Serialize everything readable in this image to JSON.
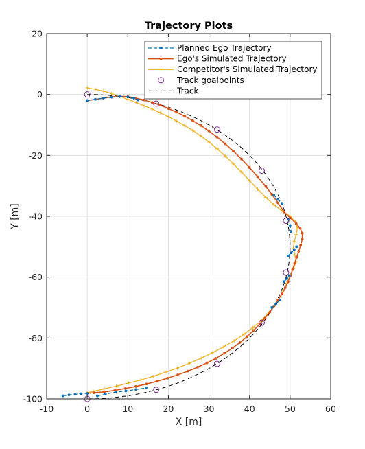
{
  "chart_data": {
    "type": "line",
    "title": "Trajectory Plots",
    "xlabel": "X [m]",
    "ylabel": "Y [m]",
    "xlim": [
      -10,
      60
    ],
    "ylim": [
      -100,
      20
    ],
    "xticks": [
      -10,
      0,
      10,
      20,
      30,
      40,
      50,
      60
    ],
    "yticks": [
      -100,
      -80,
      -60,
      -40,
      -20,
      0,
      20
    ],
    "grid": true,
    "legend_position": "top-right",
    "series": [
      {
        "name": "Planned Ego Trajectory",
        "color": "#0072BD",
        "style": "dashed-dots",
        "segments": [
          [
            [
              0,
              -2
            ],
            [
              2,
              -1.6
            ],
            [
              4,
              -1.2
            ],
            [
              6,
              -0.9
            ],
            [
              8,
              -0.7
            ],
            [
              10,
              -0.8
            ],
            [
              11.5,
              -1.2
            ],
            [
              12.5,
              -1.8
            ]
          ],
          [
            [
              46,
              -33
            ],
            [
              47,
              -34.5
            ],
            [
              48,
              -35.8
            ]
          ],
          [
            [
              49.5,
              -41
            ],
            [
              50,
              -43
            ],
            [
              50.2,
              -45
            ]
          ],
          [
            [
              49.5,
              -53
            ],
            [
              50.3,
              -52
            ],
            [
              51,
              -51
            ],
            [
              51.6,
              -50
            ]
          ],
          [
            [
              48.5,
              -61.5
            ],
            [
              49.2,
              -60.5
            ],
            [
              49.8,
              -59.5
            ]
          ],
          [
            [
              45.5,
              -70
            ],
            [
              46.5,
              -68.8
            ],
            [
              47.5,
              -67.5
            ]
          ],
          [
            [
              -6,
              -99
            ],
            [
              -4.5,
              -98.7
            ],
            [
              -3,
              -98.5
            ],
            [
              -1.5,
              -98.3
            ],
            [
              0,
              -98.2
            ]
          ],
          [
            [
              2.5,
              -99
            ],
            [
              4.5,
              -98.4
            ],
            [
              7,
              -97.8
            ],
            [
              9.5,
              -97.4
            ],
            [
              12,
              -96.9
            ],
            [
              14.5,
              -96.4
            ]
          ]
        ]
      },
      {
        "name": "Ego's Simulated Trajectory",
        "color": "#D95319",
        "style": "solid-dots",
        "points": [
          [
            0,
            -2
          ],
          [
            2,
            -1.6
          ],
          [
            4,
            -1.2
          ],
          [
            6,
            -0.8
          ],
          [
            8,
            -0.6
          ],
          [
            10,
            -0.7
          ],
          [
            12,
            -1.2
          ],
          [
            14,
            -1.8
          ],
          [
            16,
            -2.6
          ],
          [
            18,
            -3.5
          ],
          [
            20,
            -4.6
          ],
          [
            22,
            -5.8
          ],
          [
            24,
            -7.1
          ],
          [
            26,
            -8.6
          ],
          [
            28,
            -10.2
          ],
          [
            30,
            -12
          ],
          [
            32,
            -14
          ],
          [
            34,
            -16.2
          ],
          [
            36,
            -18.6
          ],
          [
            38,
            -21.2
          ],
          [
            40,
            -24
          ],
          [
            42,
            -27
          ],
          [
            44,
            -30.2
          ],
          [
            45.5,
            -32.8
          ],
          [
            47,
            -35.6
          ],
          [
            48.5,
            -38.6
          ],
          [
            50,
            -40.5
          ],
          [
            51.5,
            -42.4
          ],
          [
            52.5,
            -44
          ],
          [
            53,
            -45.6
          ],
          [
            53,
            -47.5
          ],
          [
            52.6,
            -49.5
          ],
          [
            52.1,
            -51.5
          ],
          [
            51.6,
            -53.5
          ],
          [
            51.1,
            -55.5
          ],
          [
            50.6,
            -57.5
          ],
          [
            50.1,
            -59.5
          ],
          [
            49.5,
            -61.5
          ],
          [
            48.8,
            -63.5
          ],
          [
            48,
            -65.5
          ],
          [
            47,
            -67.5
          ],
          [
            46,
            -69.5
          ],
          [
            45,
            -71.5
          ],
          [
            43.8,
            -73.5
          ],
          [
            42.5,
            -75.5
          ],
          [
            41,
            -77.5
          ],
          [
            39.4,
            -79.5
          ],
          [
            37.6,
            -81.5
          ],
          [
            35.8,
            -83.3
          ],
          [
            33.8,
            -85
          ],
          [
            31.7,
            -86.7
          ],
          [
            29.5,
            -88.2
          ],
          [
            27.2,
            -89.6
          ],
          [
            24.8,
            -90.9
          ],
          [
            22.3,
            -92.1
          ],
          [
            19.8,
            -93.2
          ],
          [
            17.2,
            -94.2
          ],
          [
            14.6,
            -95.1
          ],
          [
            12,
            -95.9
          ],
          [
            9.4,
            -96.6
          ],
          [
            6.8,
            -97.2
          ],
          [
            4.2,
            -97.7
          ],
          [
            1.6,
            -98
          ],
          [
            0,
            -98.2
          ]
        ]
      },
      {
        "name": "Competitor's Simulated Trajectory",
        "color": "#EDB120",
        "style": "solid-plus",
        "points": [
          [
            0,
            2.2
          ],
          [
            2,
            1.7
          ],
          [
            4,
            1.1
          ],
          [
            6,
            0.3
          ],
          [
            8,
            -0.6
          ],
          [
            10,
            -1.6
          ],
          [
            12,
            -2.6
          ],
          [
            14,
            -3.7
          ],
          [
            16,
            -4.8
          ],
          [
            18,
            -6
          ],
          [
            20,
            -7.3
          ],
          [
            22,
            -8.7
          ],
          [
            24,
            -10.2
          ],
          [
            26,
            -11.8
          ],
          [
            28,
            -13.6
          ],
          [
            30,
            -15.6
          ],
          [
            32,
            -17.8
          ],
          [
            34,
            -20.2
          ],
          [
            36,
            -22.8
          ],
          [
            38,
            -25.5
          ],
          [
            40,
            -28.3
          ],
          [
            42,
            -31.1
          ],
          [
            44,
            -33.8
          ],
          [
            46,
            -36.2
          ],
          [
            48,
            -38.2
          ],
          [
            50,
            -40
          ],
          [
            51.3,
            -41.8
          ],
          [
            51.8,
            -43.8
          ],
          [
            51.5,
            -46
          ],
          [
            51,
            -48.3
          ],
          [
            50.8,
            -50.6
          ],
          [
            51.2,
            -52.8
          ],
          [
            51.5,
            -55
          ],
          [
            50.8,
            -57.2
          ],
          [
            50,
            -59.5
          ],
          [
            49.2,
            -62
          ],
          [
            48.3,
            -64.6
          ],
          [
            47.3,
            -67.2
          ],
          [
            46,
            -69.7
          ],
          [
            44.5,
            -72.1
          ],
          [
            42.8,
            -74.4
          ],
          [
            40.8,
            -76.6
          ],
          [
            38.6,
            -78.8
          ],
          [
            36.2,
            -80.9
          ],
          [
            33.6,
            -82.9
          ],
          [
            30.9,
            -84.8
          ],
          [
            28.1,
            -86.6
          ],
          [
            25.2,
            -88.3
          ],
          [
            22.2,
            -89.9
          ],
          [
            19.2,
            -91.3
          ],
          [
            16.2,
            -92.6
          ],
          [
            13.2,
            -93.8
          ],
          [
            10.2,
            -94.8
          ],
          [
            7.2,
            -95.8
          ],
          [
            4.2,
            -96.7
          ],
          [
            1.5,
            -97.5
          ],
          [
            0,
            -98
          ]
        ]
      },
      {
        "name": "Track goalpoints",
        "color": "#7E2F8E",
        "style": "circles",
        "points": [
          [
            0,
            0
          ],
          [
            17,
            -3
          ],
          [
            32,
            -11.5
          ],
          [
            43,
            -25
          ],
          [
            49,
            -41.5
          ],
          [
            49,
            -58.5
          ],
          [
            43,
            -75
          ],
          [
            32,
            -88.5
          ],
          [
            17,
            -97
          ],
          [
            0,
            -100
          ]
        ]
      },
      {
        "name": "Track",
        "color": "#000000",
        "style": "dashed",
        "ellipse": {
          "cx": 0,
          "cy": -50,
          "rx": 50,
          "ry": 50,
          "from_deg": 90,
          "to_deg": -90
        }
      }
    ]
  }
}
